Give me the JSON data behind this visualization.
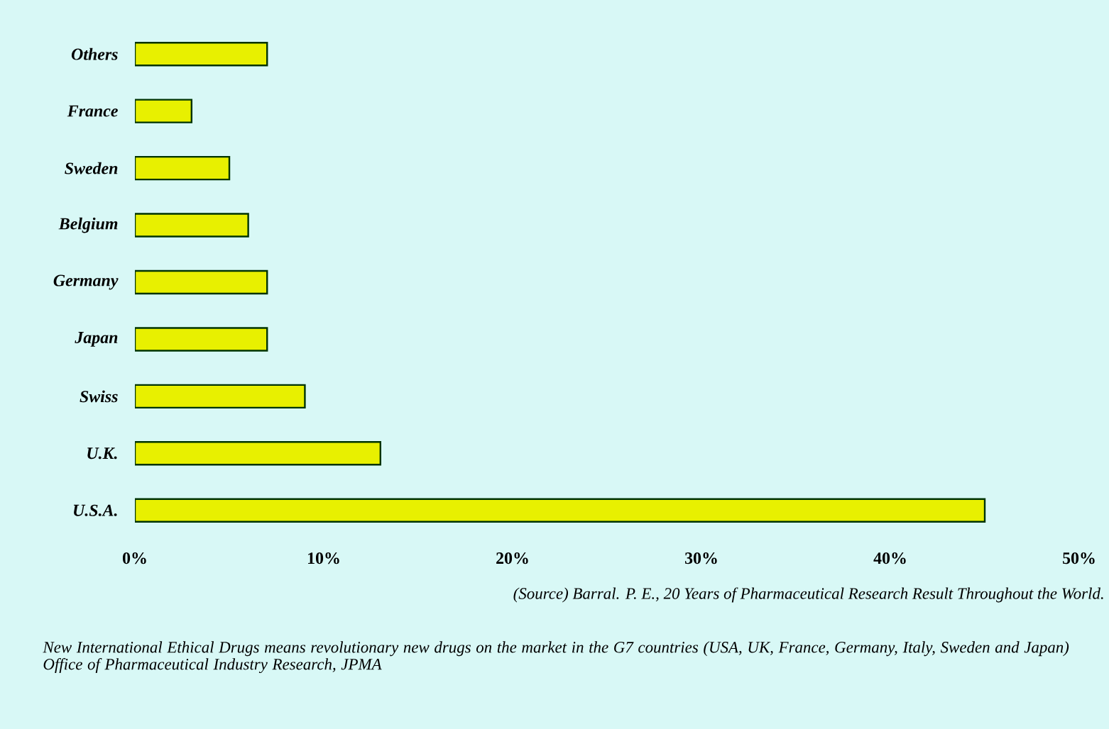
{
  "chart_data": {
    "type": "bar",
    "orientation": "horizontal",
    "categories": [
      "Others",
      "France",
      "Sweden",
      "Belgium",
      "Germany",
      "Japan",
      "Swiss",
      "U.K.",
      "U.S.A."
    ],
    "values": [
      7,
      3,
      5,
      6,
      7,
      7,
      9,
      13,
      45
    ],
    "color": "#e8f000",
    "xlim": [
      0,
      50
    ],
    "xticks": [
      {
        "value": 0,
        "label": "0%"
      },
      {
        "value": 10,
        "label": "10%"
      },
      {
        "value": 20,
        "label": "20%"
      },
      {
        "value": 30,
        "label": "30%"
      },
      {
        "value": 40,
        "label": "40%"
      },
      {
        "value": 50,
        "label": "50%"
      }
    ],
    "annotations": [
      "(Source) Barral. P. E., 20 Years of Pharmaceutical Research Result Throughout the World.",
      "New International Ethical Drugs means revolutionary new drugs on the market in the G7 countries (USA, UK, France, Germany, Italy, Sweden and Japan)",
      "Office of Pharmaceutical Industry Research, JPMA"
    ]
  }
}
